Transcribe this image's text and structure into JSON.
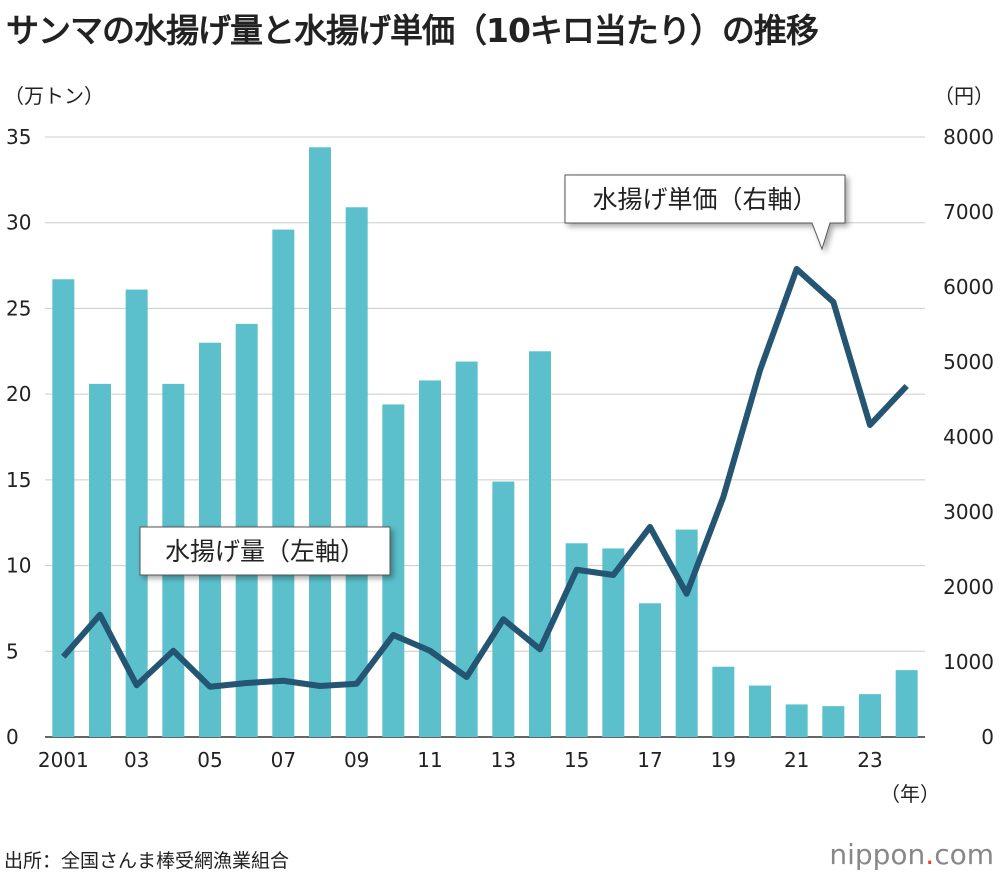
{
  "title": "サンマの水揚げ量と水揚げ単価（10キロ当たり）の推移",
  "source": "出所：全国さんま棒受網漁業組合",
  "logo": {
    "text_main": "nippon",
    "text_dot": ".",
    "text_tail": "com"
  },
  "colors": {
    "bar": "#5bc0cc",
    "line": "#245573",
    "grid": "#cccccc"
  },
  "chart_data": {
    "type": "bar+line",
    "x_unit": "（年）",
    "left_axis": {
      "unit": "（万トン）",
      "range": [
        0,
        35
      ],
      "ticks": [
        "0",
        "5",
        "10",
        "15",
        "20",
        "25",
        "30",
        "35"
      ]
    },
    "right_axis": {
      "unit": "（円）",
      "range": [
        0,
        8000
      ],
      "ticks": [
        "0",
        "1000",
        "2000",
        "3000",
        "4000",
        "5000",
        "6000",
        "7000",
        "8000"
      ]
    },
    "x_tick_labels": [
      "2001",
      "03",
      "05",
      "07",
      "09",
      "11",
      "13",
      "15",
      "17",
      "19",
      "21",
      "23"
    ],
    "years": [
      2001,
      2002,
      2003,
      2004,
      2005,
      2006,
      2007,
      2008,
      2009,
      2010,
      2011,
      2012,
      2013,
      2014,
      2015,
      2016,
      2017,
      2018,
      2019,
      2020,
      2021,
      2022,
      2023,
      2024
    ],
    "series": [
      {
        "name": "水揚げ量（左軸）",
        "type": "bar",
        "axis": "left",
        "values": [
          26.7,
          20.6,
          26.1,
          20.6,
          23.0,
          24.1,
          29.6,
          34.4,
          30.9,
          19.4,
          20.8,
          21.9,
          14.9,
          22.5,
          11.3,
          11.0,
          7.8,
          12.1,
          4.1,
          3.0,
          1.9,
          1.8,
          2.5,
          3.9
        ]
      },
      {
        "name": "水揚げ単価（右軸）",
        "type": "line",
        "axis": "right",
        "values": [
          1070,
          1630,
          690,
          1150,
          670,
          720,
          750,
          680,
          710,
          1360,
          1150,
          800,
          1570,
          1170,
          2230,
          2160,
          2800,
          1910,
          3200,
          4890,
          6240,
          5800,
          4160,
          4680
        ]
      }
    ],
    "grid": true
  }
}
